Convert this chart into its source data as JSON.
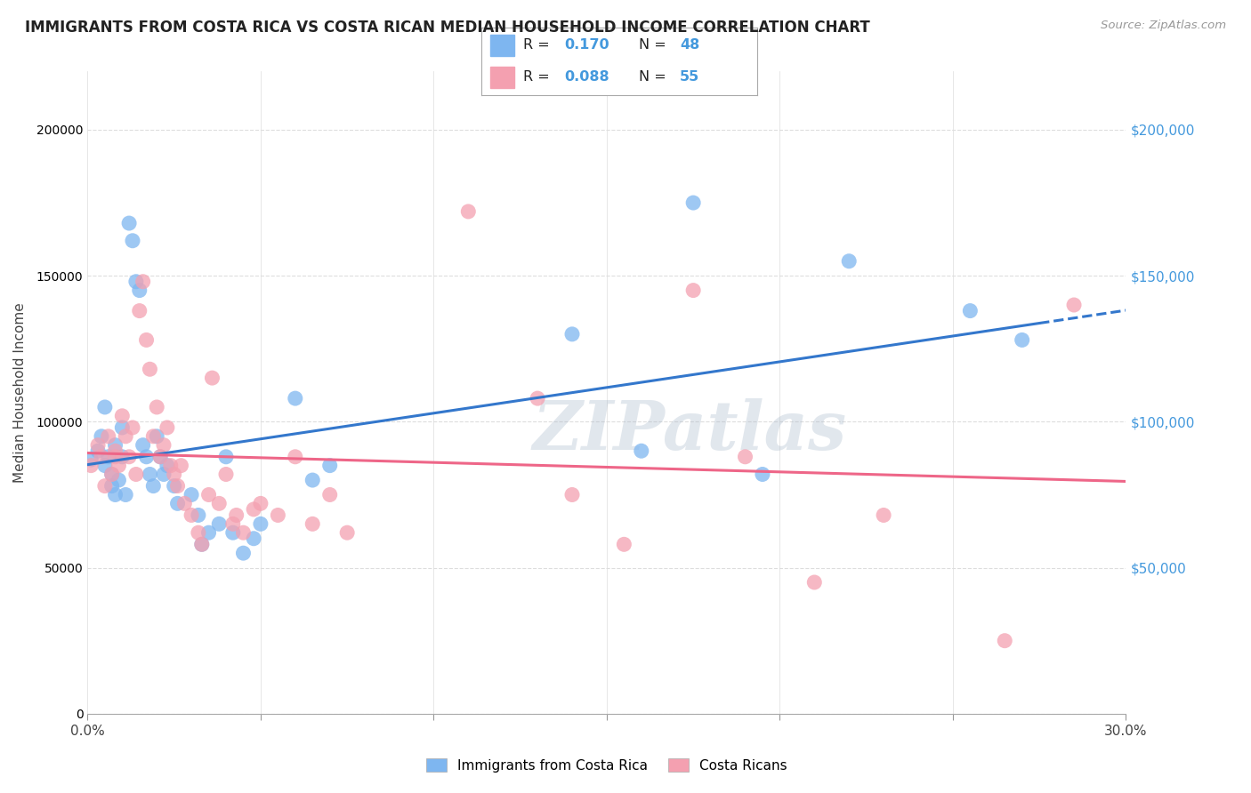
{
  "title": "IMMIGRANTS FROM COSTA RICA VS COSTA RICAN MEDIAN HOUSEHOLD INCOME CORRELATION CHART",
  "source": "Source: ZipAtlas.com",
  "ylabel": "Median Household Income",
  "watermark": "ZIPatlas",
  "legend_label1": "Immigrants from Costa Rica",
  "legend_label2": "Costa Ricans",
  "R1": 0.17,
  "N1": 48,
  "R2": 0.088,
  "N2": 55,
  "color_blue": "#7EB6F0",
  "color_pink": "#F4A0B0",
  "color_blue_text": "#4499DD",
  "color_pink_text": "#EE6688",
  "line_blue": "#3377CC",
  "line_pink": "#EE6688",
  "xlim": [
    0.0,
    0.3
  ],
  "ylim": [
    0,
    220000
  ],
  "bg_color": "#FFFFFF",
  "grid_color": "#DDDDDD",
  "blue_scatter_x": [
    0.001,
    0.003,
    0.004,
    0.005,
    0.005,
    0.006,
    0.007,
    0.007,
    0.008,
    0.008,
    0.009,
    0.01,
    0.01,
    0.011,
    0.012,
    0.013,
    0.014,
    0.015,
    0.016,
    0.017,
    0.018,
    0.019,
    0.02,
    0.021,
    0.022,
    0.023,
    0.025,
    0.026,
    0.03,
    0.032,
    0.033,
    0.035,
    0.038,
    0.04,
    0.042,
    0.045,
    0.048,
    0.05,
    0.06,
    0.065,
    0.07,
    0.14,
    0.16,
    0.175,
    0.195,
    0.22,
    0.255,
    0.27
  ],
  "blue_scatter_y": [
    87000,
    90000,
    95000,
    85000,
    105000,
    88000,
    82000,
    78000,
    75000,
    92000,
    80000,
    88000,
    98000,
    75000,
    168000,
    162000,
    148000,
    145000,
    92000,
    88000,
    82000,
    78000,
    95000,
    88000,
    82000,
    85000,
    78000,
    72000,
    75000,
    68000,
    58000,
    62000,
    65000,
    88000,
    62000,
    55000,
    60000,
    65000,
    108000,
    80000,
    85000,
    130000,
    90000,
    175000,
    82000,
    155000,
    138000,
    128000
  ],
  "pink_scatter_x": [
    0.001,
    0.003,
    0.004,
    0.005,
    0.006,
    0.007,
    0.008,
    0.008,
    0.009,
    0.01,
    0.011,
    0.012,
    0.013,
    0.014,
    0.015,
    0.016,
    0.017,
    0.018,
    0.019,
    0.02,
    0.021,
    0.022,
    0.023,
    0.024,
    0.025,
    0.026,
    0.027,
    0.028,
    0.03,
    0.032,
    0.033,
    0.035,
    0.036,
    0.038,
    0.04,
    0.042,
    0.043,
    0.045,
    0.048,
    0.05,
    0.055,
    0.06,
    0.065,
    0.07,
    0.075,
    0.11,
    0.13,
    0.14,
    0.155,
    0.175,
    0.19,
    0.21,
    0.23,
    0.265,
    0.285
  ],
  "pink_scatter_y": [
    85000,
    92000,
    88000,
    78000,
    95000,
    82000,
    88000,
    90000,
    85000,
    102000,
    95000,
    88000,
    98000,
    82000,
    138000,
    148000,
    128000,
    118000,
    95000,
    105000,
    88000,
    92000,
    98000,
    85000,
    82000,
    78000,
    85000,
    72000,
    68000,
    62000,
    58000,
    75000,
    115000,
    72000,
    82000,
    65000,
    68000,
    62000,
    70000,
    72000,
    68000,
    88000,
    65000,
    75000,
    62000,
    172000,
    108000,
    75000,
    58000,
    145000,
    88000,
    45000,
    68000,
    25000,
    140000
  ]
}
